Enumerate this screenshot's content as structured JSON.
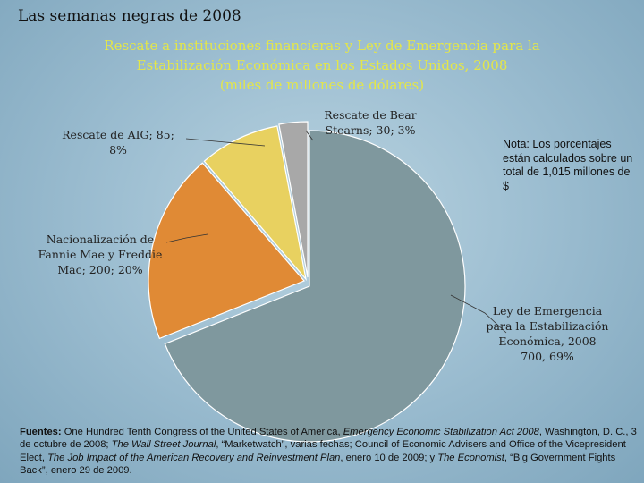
{
  "page_title": "Las semanas negras de 2008",
  "chart_data": {
    "type": "pie",
    "title_lines": [
      "Rescate a instituciones financieras y Ley de Emergencia para la",
      "Estabilización Económica en los Estados Unidos, 2008",
      "(miles de millones de dólares)"
    ],
    "slices": [
      {
        "value": 700,
        "percent": 69,
        "color": "#7f989e",
        "label_lines": [
          "Ley de Emergencia",
          "para la Estabilización",
          "Económica, 2008",
          "700, 69%"
        ]
      },
      {
        "value": 200,
        "percent": 20,
        "color": "#e08a35",
        "label_lines": [
          "Nacionalización de",
          "Fannie Mae y Freddie",
          "Mac; 200; 20%"
        ]
      },
      {
        "value": 85,
        "percent": 8,
        "color": "#e8d160",
        "label_lines": [
          "Rescate de AIG; 85;",
          "8%"
        ]
      },
      {
        "value": 30,
        "percent": 3,
        "color": "#a8a8a8",
        "label_lines": [
          "Rescate de Bear",
          "Stearns; 30; 3%"
        ]
      }
    ]
  },
  "note": "Nota: Los porcentajes están calculados sobre un total de 1,015 millones de $",
  "sources": {
    "label": "Fuentes:",
    "t1": " One Hundred Tenth Congress of the United States of America, ",
    "i1": "Emergency Economic Stabilization Act 2008",
    "t2": ", Washington, D. C., 3 de octubre de 2008; ",
    "i2": "The Wall Street Journal",
    "t3": ", “Marketwatch”, varias fechas; Council of Economic Advisers and Office of the Vicepresident Elect, ",
    "i3": "The Job Impact of the American Recovery and Reinvestment Plan",
    "t4": ", enero 10 de 2009; y ",
    "i4": "The Economist",
    "t5": ", “Big Government Fights Back”, enero 29 de 2009."
  }
}
